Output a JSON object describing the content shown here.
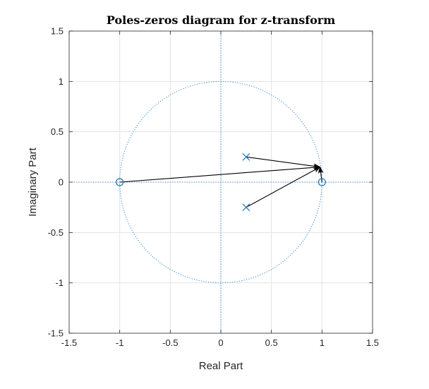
{
  "chart_data": {
    "type": "scatter",
    "title": "Poles-zeros diagram for z-transform",
    "xlabel": "Real Part",
    "ylabel": "Imaginary Part",
    "xlim": [
      -1.5,
      1.5
    ],
    "ylim": [
      -1.5,
      1.5
    ],
    "xticks": [
      -1.5,
      -1,
      -0.5,
      0,
      0.5,
      1,
      1.5
    ],
    "yticks": [
      -1.5,
      -1,
      -0.5,
      0,
      0.5,
      1,
      1.5
    ],
    "xtick_labels": [
      "-1.5",
      "-1",
      "-0.5",
      "0",
      "0.5",
      "1",
      "1.5"
    ],
    "ytick_labels": [
      "-1.5",
      "-1",
      "-0.5",
      "0",
      "0.5",
      "1",
      "1.5"
    ],
    "grid": true,
    "unit_circle": {
      "radius": 1,
      "style": "dotted"
    },
    "zeros": [
      {
        "x": -1,
        "y": 0
      },
      {
        "x": 1,
        "y": 0
      }
    ],
    "poles": [
      {
        "x": 0.25,
        "y": 0.25
      },
      {
        "x": 0.25,
        "y": -0.25
      }
    ],
    "vectors": [
      {
        "from": [
          -1,
          0
        ],
        "to": [
          0.98,
          0.15
        ]
      },
      {
        "from": [
          0.25,
          0.25
        ],
        "to": [
          0.98,
          0.15
        ]
      },
      {
        "from": [
          0.25,
          -0.25
        ],
        "to": [
          0.98,
          0.15
        ]
      },
      {
        "from": [
          1,
          0
        ],
        "to": [
          0.98,
          0.15
        ]
      }
    ],
    "colors": {
      "marker": "#2a7ab8",
      "dotted": "#3d8fd1",
      "grid": "#e3e3e3",
      "axes": "#262626",
      "arrow": "#000000"
    }
  }
}
